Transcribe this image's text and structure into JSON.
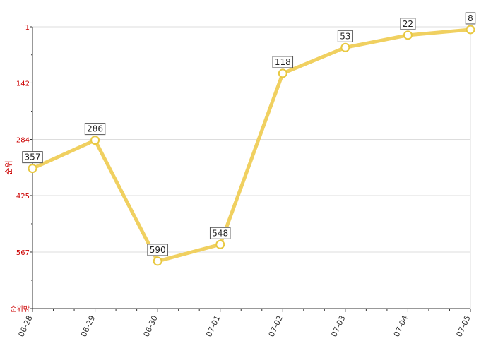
{
  "chart_data": {
    "type": "line",
    "title": "",
    "xlabel": "",
    "ylabel": "순위",
    "categories": [
      "06-28",
      "06-29",
      "06-30",
      "07-01",
      "07-02",
      "07-03",
      "07-04",
      "07-05"
    ],
    "series": [
      {
        "values": [
          357,
          286,
          590,
          548,
          118,
          53,
          22,
          8
        ]
      }
    ],
    "y_axis": {
      "inverted": true,
      "ylim": [
        1,
        709
      ],
      "ticks": [
        "1",
        "142",
        "284",
        "425",
        "567",
        "순위밖"
      ],
      "tick_values": [
        1,
        142,
        284,
        425,
        567,
        709
      ]
    },
    "grid": "horizontal",
    "colors": {
      "line": "#f0d060",
      "marker_fill": "#ffffff",
      "marker_stroke": "#e8c840",
      "tick_text": "#cc0000"
    }
  }
}
